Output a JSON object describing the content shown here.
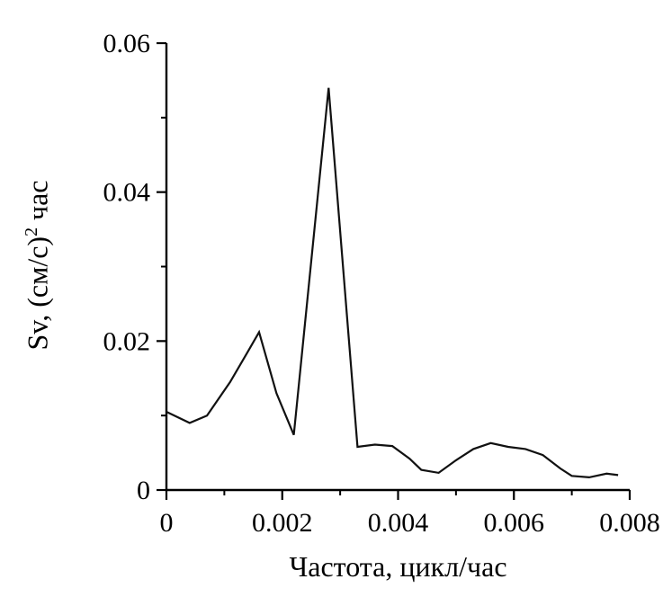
{
  "chart_data": {
    "type": "line",
    "title": "",
    "xlabel": "Частота, цикл/час",
    "ylabel": "Sv, (см/с)2 час",
    "ylabel_parts": {
      "prefix": "Sv, (см/с)",
      "sup": "2",
      "suffix": " час"
    },
    "xlim": [
      0,
      0.008
    ],
    "ylim": [
      0,
      0.06
    ],
    "x_ticks": [
      0,
      0.002,
      0.004,
      0.006,
      0.008
    ],
    "x_tick_labels": [
      "0",
      "0.002",
      "0.004",
      "0.006",
      "0.008"
    ],
    "x_minor_ticks": [
      0.001,
      0.003,
      0.005,
      0.007
    ],
    "y_ticks": [
      0,
      0.02,
      0.04,
      0.06
    ],
    "y_tick_labels": [
      "0",
      "0.02",
      "0.04",
      "0.06"
    ],
    "y_minor_ticks": [
      0.01,
      0.03,
      0.05
    ],
    "grid": false,
    "legend": "none",
    "line_color": "#111111",
    "axis_color": "#000000",
    "series": [
      {
        "name": "Sv",
        "points": [
          [
            0.0,
            0.0105
          ],
          [
            0.0004,
            0.009
          ],
          [
            0.0007,
            0.01
          ],
          [
            0.0011,
            0.0145
          ],
          [
            0.0014,
            0.0185
          ],
          [
            0.0016,
            0.0212
          ],
          [
            0.0019,
            0.013
          ],
          [
            0.0022,
            0.0074
          ],
          [
            0.0028,
            0.054
          ],
          [
            0.0033,
            0.0058
          ],
          [
            0.0036,
            0.0061
          ],
          [
            0.0039,
            0.0059
          ],
          [
            0.0042,
            0.0042
          ],
          [
            0.0044,
            0.0027
          ],
          [
            0.0047,
            0.0023
          ],
          [
            0.005,
            0.004
          ],
          [
            0.0053,
            0.0055
          ],
          [
            0.0056,
            0.0063
          ],
          [
            0.0059,
            0.0058
          ],
          [
            0.0062,
            0.0055
          ],
          [
            0.0065,
            0.0047
          ],
          [
            0.0068,
            0.0029
          ],
          [
            0.007,
            0.0019
          ],
          [
            0.0073,
            0.0017
          ],
          [
            0.0076,
            0.0022
          ],
          [
            0.0078,
            0.002
          ]
        ]
      }
    ]
  }
}
